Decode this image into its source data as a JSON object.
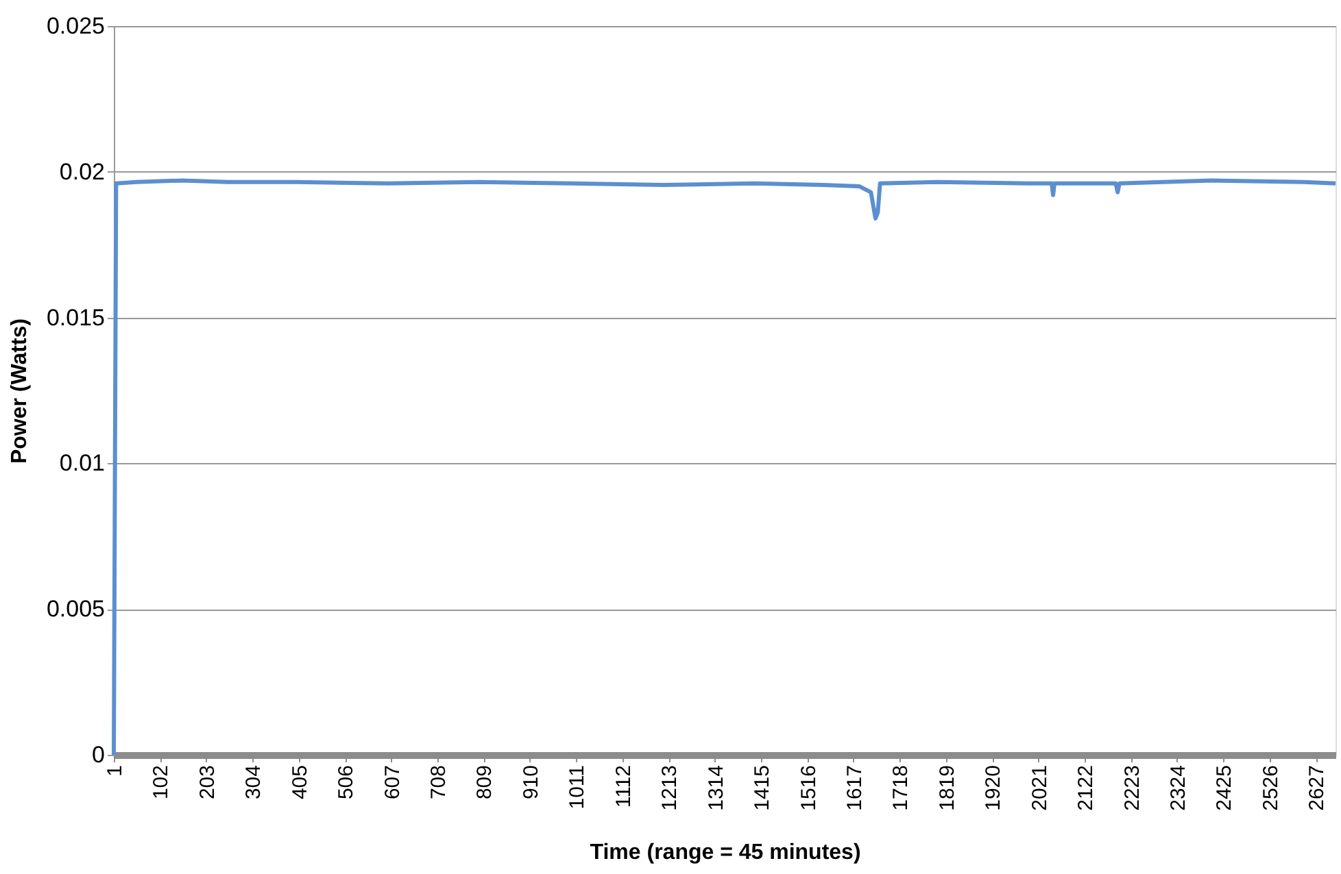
{
  "chart_data": {
    "type": "line",
    "xlabel": "Time (range = 45 minutes)",
    "ylabel": "Power (Watts)",
    "xlim": [
      1,
      2670
    ],
    "xticks": [
      1,
      102,
      203,
      304,
      405,
      506,
      607,
      708,
      809,
      910,
      1011,
      1112,
      1213,
      1314,
      1415,
      1516,
      1617,
      1718,
      1819,
      1920,
      2021,
      2122,
      2223,
      2324,
      2425,
      2526,
      2627
    ],
    "ylim": [
      0,
      0.025
    ],
    "yticks": [
      0,
      0.005,
      0.01,
      0.015,
      0.02,
      0.025
    ],
    "grid": "y",
    "marker": "none",
    "line_style": "solid",
    "series": [
      {
        "color": "#5b8fd0",
        "x": [
          1,
          6,
          50,
          150,
          250,
          400,
          600,
          800,
          1000,
          1200,
          1400,
          1550,
          1630,
          1655,
          1665,
          1670,
          1675,
          1800,
          2000,
          2050,
          2053,
          2056,
          2190,
          2194,
          2198,
          2400,
          2600,
          2670
        ],
        "values": [
          0,
          0.0196,
          0.01965,
          0.0197,
          0.01965,
          0.01965,
          0.0196,
          0.01965,
          0.0196,
          0.01955,
          0.0196,
          0.01955,
          0.0195,
          0.0193,
          0.0184,
          0.0186,
          0.0196,
          0.01965,
          0.0196,
          0.0196,
          0.0192,
          0.0196,
          0.0196,
          0.0193,
          0.0196,
          0.0197,
          0.01965,
          0.0196
        ]
      }
    ]
  }
}
